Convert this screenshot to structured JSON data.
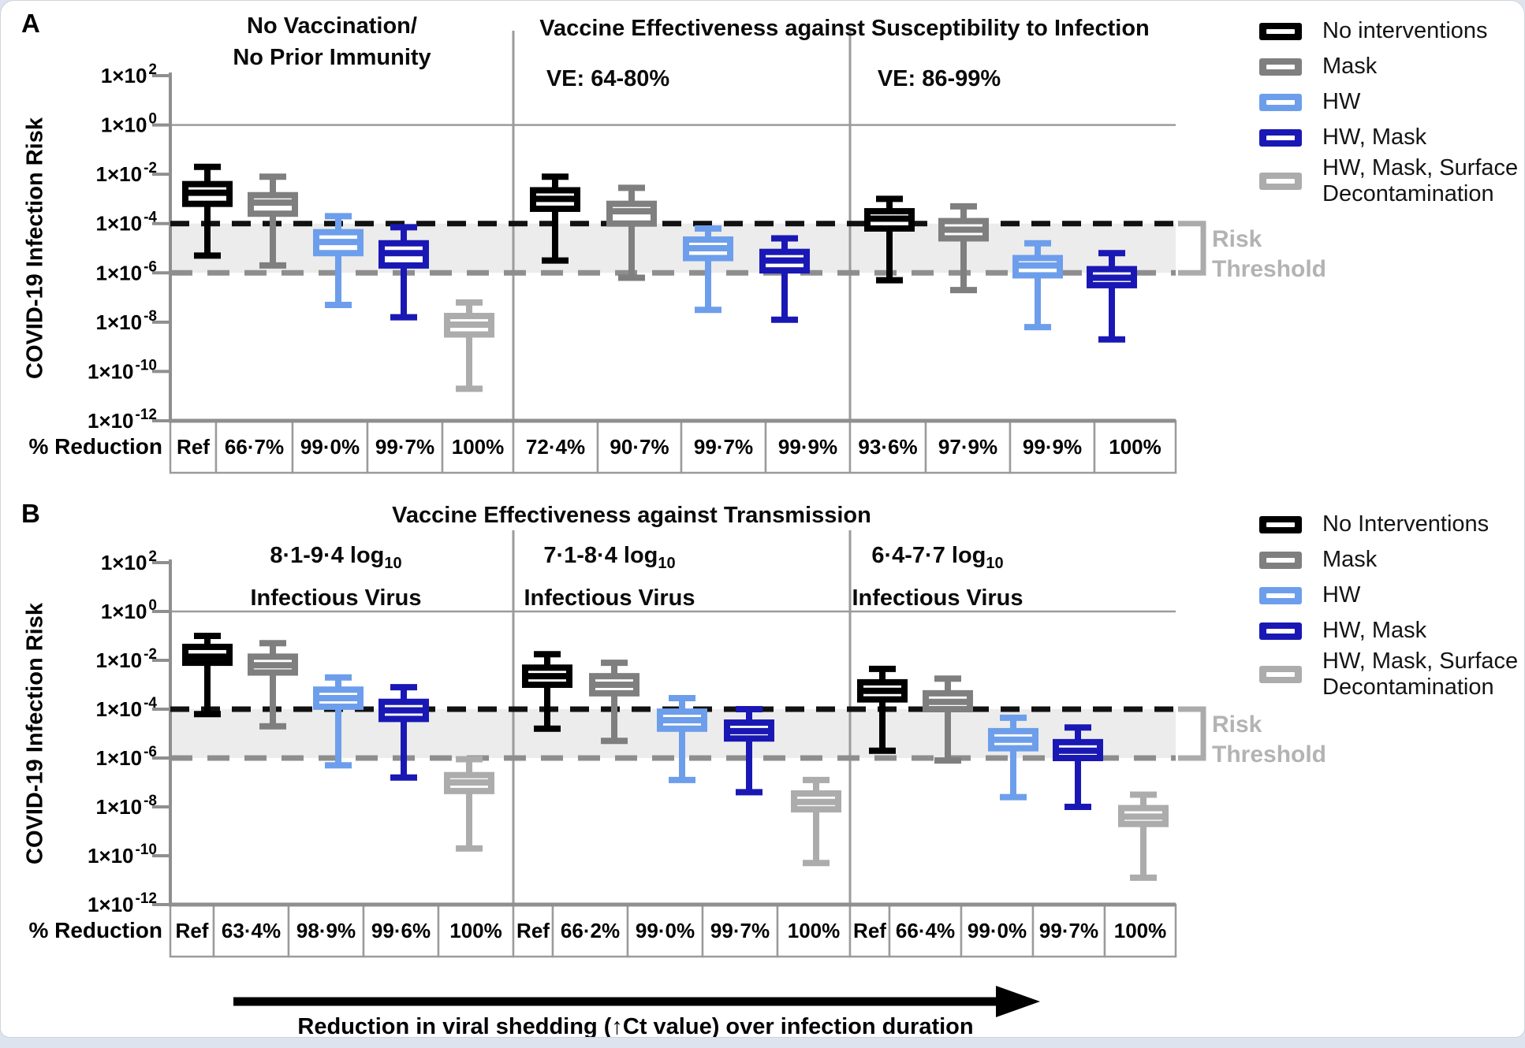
{
  "colors": {
    "page_background": "#dde4ef",
    "card_background": "#ffffff",
    "card_border": "#cdd4da",
    "band": "#ececec",
    "axis": "#8f8f8f",
    "grid": "#9b9b9b",
    "threshold_upper_dashed": "#111111",
    "threshold_lower_dashed": "#8e8e8e",
    "bracket": "#ababab",
    "muted_label": "#b3b3b3",
    "arrow": "#000000"
  },
  "y_axis": {
    "label": "COVID-19 Infection Risk",
    "tick_base": "1×10",
    "tick_exponents": [
      2,
      0,
      -2,
      -4,
      -6,
      -8,
      -10,
      -12
    ]
  },
  "reduction_row_label": "% Reduction",
  "risk_threshold": {
    "line1": "Risk",
    "line2": "Threshold"
  },
  "footer": {
    "arrow_caption": "Reduction in viral shedding (↑Ct value) over infection duration"
  },
  "panel_a": {
    "letter": "A",
    "main_title": "Vaccine Effectiveness against Susceptibility to Infection"
  },
  "panel_b": {
    "letter": "B",
    "main_title": "Vaccine Effectiveness against Transmission"
  },
  "chart_data": [
    {
      "type": "boxplot",
      "panel": "A",
      "title": "Vaccine Effectiveness against Susceptibility to Infection",
      "ylabel": "COVID-19 Infection Risk",
      "yscale": "log10",
      "ylim_exponents": [
        -12,
        2
      ],
      "risk_threshold_band_exponents": [
        -6,
        -4
      ],
      "values_unit": "log10 of COVID-19 infection risk",
      "legend": [
        {
          "label": "No interventions",
          "color": "#000000"
        },
        {
          "label": "Mask",
          "color": "#7f7f7f"
        },
        {
          "label": "HW",
          "color": "#6d9eeb"
        },
        {
          "label": "HW, Mask",
          "color": "#1a18b4"
        },
        {
          "label_line1": "HW, Mask, Surface",
          "label_line2": "Decontamination",
          "color": "#acacac"
        }
      ],
      "groups": [
        {
          "header_line1": "No Vaccination/",
          "header_line2": "No Prior Immunity",
          "boxes": [
            {
              "series": 0,
              "reduction": "Ref",
              "whisker_low": -5.3,
              "q1": -3.2,
              "median": -2.75,
              "q3": -2.4,
              "whisker_high": -1.7
            },
            {
              "series": 1,
              "reduction": "66·7%",
              "whisker_low": -5.7,
              "q1": -3.6,
              "median": -3.15,
              "q3": -2.85,
              "whisker_high": -2.1
            },
            {
              "series": 2,
              "reduction": "99·0%",
              "whisker_low": -7.3,
              "q1": -5.2,
              "median": -4.75,
              "q3": -4.35,
              "whisker_high": -3.7
            },
            {
              "series": 3,
              "reduction": "99·7%",
              "whisker_low": -7.8,
              "q1": -5.7,
              "median": -5.2,
              "q3": -4.8,
              "whisker_high": -4.15
            },
            {
              "series": 4,
              "reduction": "100%",
              "whisker_low": -10.7,
              "q1": -8.5,
              "median": -8.1,
              "q3": -7.75,
              "whisker_high": -7.2
            }
          ]
        },
        {
          "header_line1": "VE: 64-80%",
          "boxes": [
            {
              "series": 0,
              "reduction": "72·4%",
              "whisker_low": -5.5,
              "q1": -3.4,
              "median": -3.0,
              "q3": -2.65,
              "whisker_high": -2.1
            },
            {
              "series": 1,
              "reduction": "90·7%",
              "whisker_low": -6.2,
              "q1": -4.0,
              "median": -3.5,
              "q3": -3.2,
              "whisker_high": -2.55
            },
            {
              "series": 2,
              "reduction": "99·7%",
              "whisker_low": -7.5,
              "q1": -5.4,
              "median": -5.0,
              "q3": -4.65,
              "whisker_high": -4.2
            },
            {
              "series": 3,
              "reduction": "99·9%",
              "whisker_low": -7.9,
              "q1": -5.9,
              "median": -5.5,
              "q3": -5.15,
              "whisker_high": -4.6
            }
          ]
        },
        {
          "header_line1": "VE: 86-99%",
          "boxes": [
            {
              "series": 0,
              "reduction": "93·6%",
              "whisker_low": -6.3,
              "q1": -4.2,
              "median": -3.8,
              "q3": -3.5,
              "whisker_high": -3.0
            },
            {
              "series": 1,
              "reduction": "97·9%",
              "whisker_low": -6.7,
              "q1": -4.6,
              "median": -4.25,
              "q3": -3.9,
              "whisker_high": -3.3
            },
            {
              "series": 2,
              "reduction": "99·9%",
              "whisker_low": -8.2,
              "q1": -6.1,
              "median": -5.7,
              "q3": -5.4,
              "whisker_high": -4.8
            },
            {
              "series": 3,
              "reduction": "100%",
              "whisker_low": -8.7,
              "q1": -6.5,
              "median": -6.2,
              "q3": -5.85,
              "whisker_high": -5.2
            }
          ]
        }
      ]
    },
    {
      "type": "boxplot",
      "panel": "B",
      "title": "Vaccine Effectiveness against Transmission",
      "ylabel": "COVID-19 Infection Risk",
      "yscale": "log10",
      "ylim_exponents": [
        -12,
        2
      ],
      "risk_threshold_band_exponents": [
        -6,
        -4
      ],
      "values_unit": "log10 of COVID-19 infection risk",
      "legend": [
        {
          "label": "No Interventions",
          "color": "#000000"
        },
        {
          "label": "Mask",
          "color": "#7f7f7f"
        },
        {
          "label": "HW",
          "color": "#6d9eeb"
        },
        {
          "label": "HW, Mask",
          "color": "#1a18b4"
        },
        {
          "label_line1": "HW, Mask, Surface",
          "label_line2": "Decontamination",
          "color": "#acacac"
        }
      ],
      "groups": [
        {
          "header_line1_main": "8·1-9·4 log",
          "header_line1_sub": "10",
          "header_line2": "Infectious Virus",
          "boxes": [
            {
              "series": 0,
              "reduction": "Ref",
              "whisker_low": -4.2,
              "q1": -2.1,
              "median": -1.85,
              "q3": -1.45,
              "whisker_high": -1.0
            },
            {
              "series": 1,
              "reduction": "63·4%",
              "whisker_low": -4.7,
              "q1": -2.5,
              "median": -2.2,
              "q3": -1.85,
              "whisker_high": -1.3
            },
            {
              "series": 2,
              "reduction": "98·9%",
              "whisker_low": -6.3,
              "q1": -3.9,
              "median": -3.55,
              "q3": -3.2,
              "whisker_high": -2.7
            },
            {
              "series": 3,
              "reduction": "99·6%",
              "whisker_low": -6.8,
              "q1": -4.4,
              "median": -4.05,
              "q3": -3.7,
              "whisker_high": -3.1
            },
            {
              "series": 4,
              "reduction": "100%",
              "whisker_low": -9.7,
              "q1": -7.35,
              "median": -7.0,
              "q3": -6.7,
              "whisker_high": -6.05
            }
          ]
        },
        {
          "header_line1_main": "7·1-8·4 log",
          "header_line1_sub": "10",
          "header_line2": "Infectious Virus",
          "boxes": [
            {
              "series": 0,
              "reduction": "Ref",
              "whisker_low": -4.8,
              "q1": -3.0,
              "median": -2.65,
              "q3": -2.3,
              "whisker_high": -1.75
            },
            {
              "series": 1,
              "reduction": "66·2%",
              "whisker_low": -5.3,
              "q1": -3.35,
              "median": -3.0,
              "q3": -2.65,
              "whisker_high": -2.1
            },
            {
              "series": 2,
              "reduction": "99·0%",
              "whisker_low": -6.9,
              "q1": -4.8,
              "median": -4.45,
              "q3": -4.1,
              "whisker_high": -3.55
            },
            {
              "series": 3,
              "reduction": "99·7%",
              "whisker_low": -7.4,
              "q1": -5.2,
              "median": -4.9,
              "q3": -4.55,
              "whisker_high": -4.0
            },
            {
              "series": 4,
              "reduction": "100%",
              "whisker_low": -10.3,
              "q1": -8.1,
              "median": -7.8,
              "q3": -7.45,
              "whisker_high": -6.9
            }
          ]
        },
        {
          "header_line1_main": "6·4-7·7 log",
          "header_line1_sub": "10",
          "header_line2": "Infectious Virus",
          "boxes": [
            {
              "series": 0,
              "reduction": "Ref",
              "whisker_low": -5.7,
              "q1": -3.6,
              "median": -3.25,
              "q3": -2.9,
              "whisker_high": -2.35
            },
            {
              "series": 1,
              "reduction": "66·4%",
              "whisker_low": -6.1,
              "q1": -4.0,
              "median": -3.7,
              "q3": -3.35,
              "whisker_high": -2.75
            },
            {
              "series": 2,
              "reduction": "99·0%",
              "whisker_low": -7.6,
              "q1": -5.6,
              "median": -5.25,
              "q3": -4.9,
              "whisker_high": -4.35
            },
            {
              "series": 3,
              "reduction": "99·7%",
              "whisker_low": -8.0,
              "q1": -6.0,
              "median": -5.7,
              "q3": -5.35,
              "whisker_high": -4.75
            },
            {
              "series": 4,
              "reduction": "100%",
              "whisker_low": -10.9,
              "q1": -8.7,
              "median": -8.4,
              "q3": -8.05,
              "whisker_high": -7.5
            }
          ]
        }
      ]
    }
  ]
}
